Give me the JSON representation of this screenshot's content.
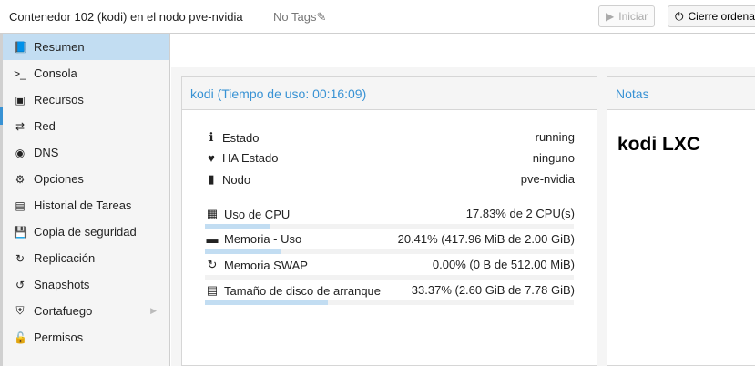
{
  "header": {
    "title": "Contenedor 102 (kodi) en el nodo pve-nvidia",
    "tags": "No Tags",
    "start_label": "Iniciar",
    "shutdown_label": "Cierre ordena"
  },
  "sidebar": {
    "items": [
      {
        "label": "Resumen",
        "icon": "book-icon",
        "selected": true
      },
      {
        "label": "Consola",
        "icon": "terminal-icon"
      },
      {
        "label": "Recursos",
        "icon": "cube-icon"
      },
      {
        "label": "Red",
        "icon": "exchange-icon"
      },
      {
        "label": "DNS",
        "icon": "globe-icon"
      },
      {
        "label": "Opciones",
        "icon": "gear-icon"
      },
      {
        "label": "Historial de Tareas",
        "icon": "list-icon"
      },
      {
        "label": "Copia de seguridad",
        "icon": "floppy-icon"
      },
      {
        "label": "Replicación",
        "icon": "retweet-icon"
      },
      {
        "label": "Snapshots",
        "icon": "history-icon"
      },
      {
        "label": "Cortafuego",
        "icon": "shield-icon",
        "expandable": true
      },
      {
        "label": "Permisos",
        "icon": "unlock-icon"
      }
    ]
  },
  "summary": {
    "title": "kodi (Tiempo de uso: 00:16:09)",
    "status": [
      {
        "label": "Estado",
        "value": "running"
      },
      {
        "label": "HA Estado",
        "value": "ninguno"
      },
      {
        "label": "Nodo",
        "value": "pve-nvidia"
      }
    ],
    "usage": [
      {
        "label": "Uso de CPU",
        "value": "17.83% de 2 CPU(s)",
        "percent": 17.83
      },
      {
        "label": "Memoria - Uso",
        "value": "20.41% (417.96 MiB de 2.00 GiB)",
        "percent": 20.41
      },
      {
        "label": "Memoria SWAP",
        "value": "0.00% (0 B de 512.00 MiB)",
        "percent": 0
      },
      {
        "label": "Tamaño de disco de arranque",
        "value": "33.37% (2.60 GiB de 7.78 GiB)",
        "percent": 33.37
      }
    ]
  },
  "notes": {
    "title": "Notas",
    "content": "kodi LXC"
  },
  "colors": {
    "accent": "#3892d4",
    "selected": "#c2ddf2"
  }
}
